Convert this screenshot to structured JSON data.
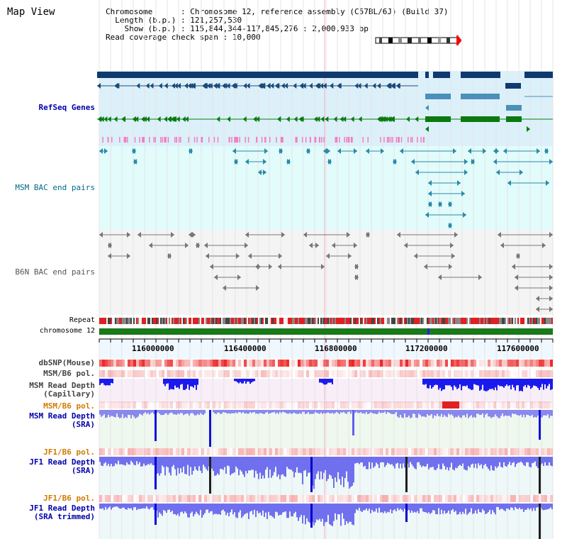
{
  "title": "Map View",
  "info": {
    "chromosome_label": "Chromosome",
    "chromosome_value": "Chromosome 12, reference assembly (C57BL/6J) (Build 37)",
    "length_label": "Length (b.p.)",
    "length_value": "121,257,530",
    "show_label": "Show (b.p.)",
    "show_value": "115,844,344-117,845,276 : 2,000,933 bp",
    "span_label": "Read coverage check span",
    "span_value": "10,000"
  },
  "tracks": {
    "refseq": "RefSeq Genes",
    "msm_bac": "MSM BAC end pairs",
    "b6n_bac": "B6N BAC end pairs",
    "repeat": "Repeat",
    "chromosome": "chromosome 12",
    "dbsnp": "dbSNP(Mouse)",
    "msm_pol": "MSM/B6 pol.",
    "msm_cap_1": "MSM Read Depth",
    "msm_cap_2": "(Capillary)",
    "msm_pol2": "MSM/B6 pol.",
    "msm_sra_1": "MSM Read Depth",
    "msm_sra_2": "(SRA)",
    "jf1_pol": "JF1/B6 pol.",
    "jf1_sra_1": "JF1 Read Depth",
    "jf1_sra_2": "(SRA)",
    "jf1_pol2": "JF1/B6 pol.",
    "jf1_trim_1": "JF1 Read Depth",
    "jf1_trim_2": "(SRA trimmed)"
  },
  "axis_ticks": [
    "116000000",
    "116400000",
    "116800000",
    "117200000",
    "117600000"
  ],
  "colors": {
    "refseq_bg": "#dcf0fa",
    "bac_bg": "#e2fbfb",
    "b6n_bg": "#f6f6f6",
    "gene_dark": "#0e3a6e",
    "gene_mid": "#4a90b8",
    "gene_green": "#0a7a10",
    "msm_pol_label": "#d07a00",
    "depth_blue": "#0000dd",
    "label_blue": "#0000aa"
  }
}
